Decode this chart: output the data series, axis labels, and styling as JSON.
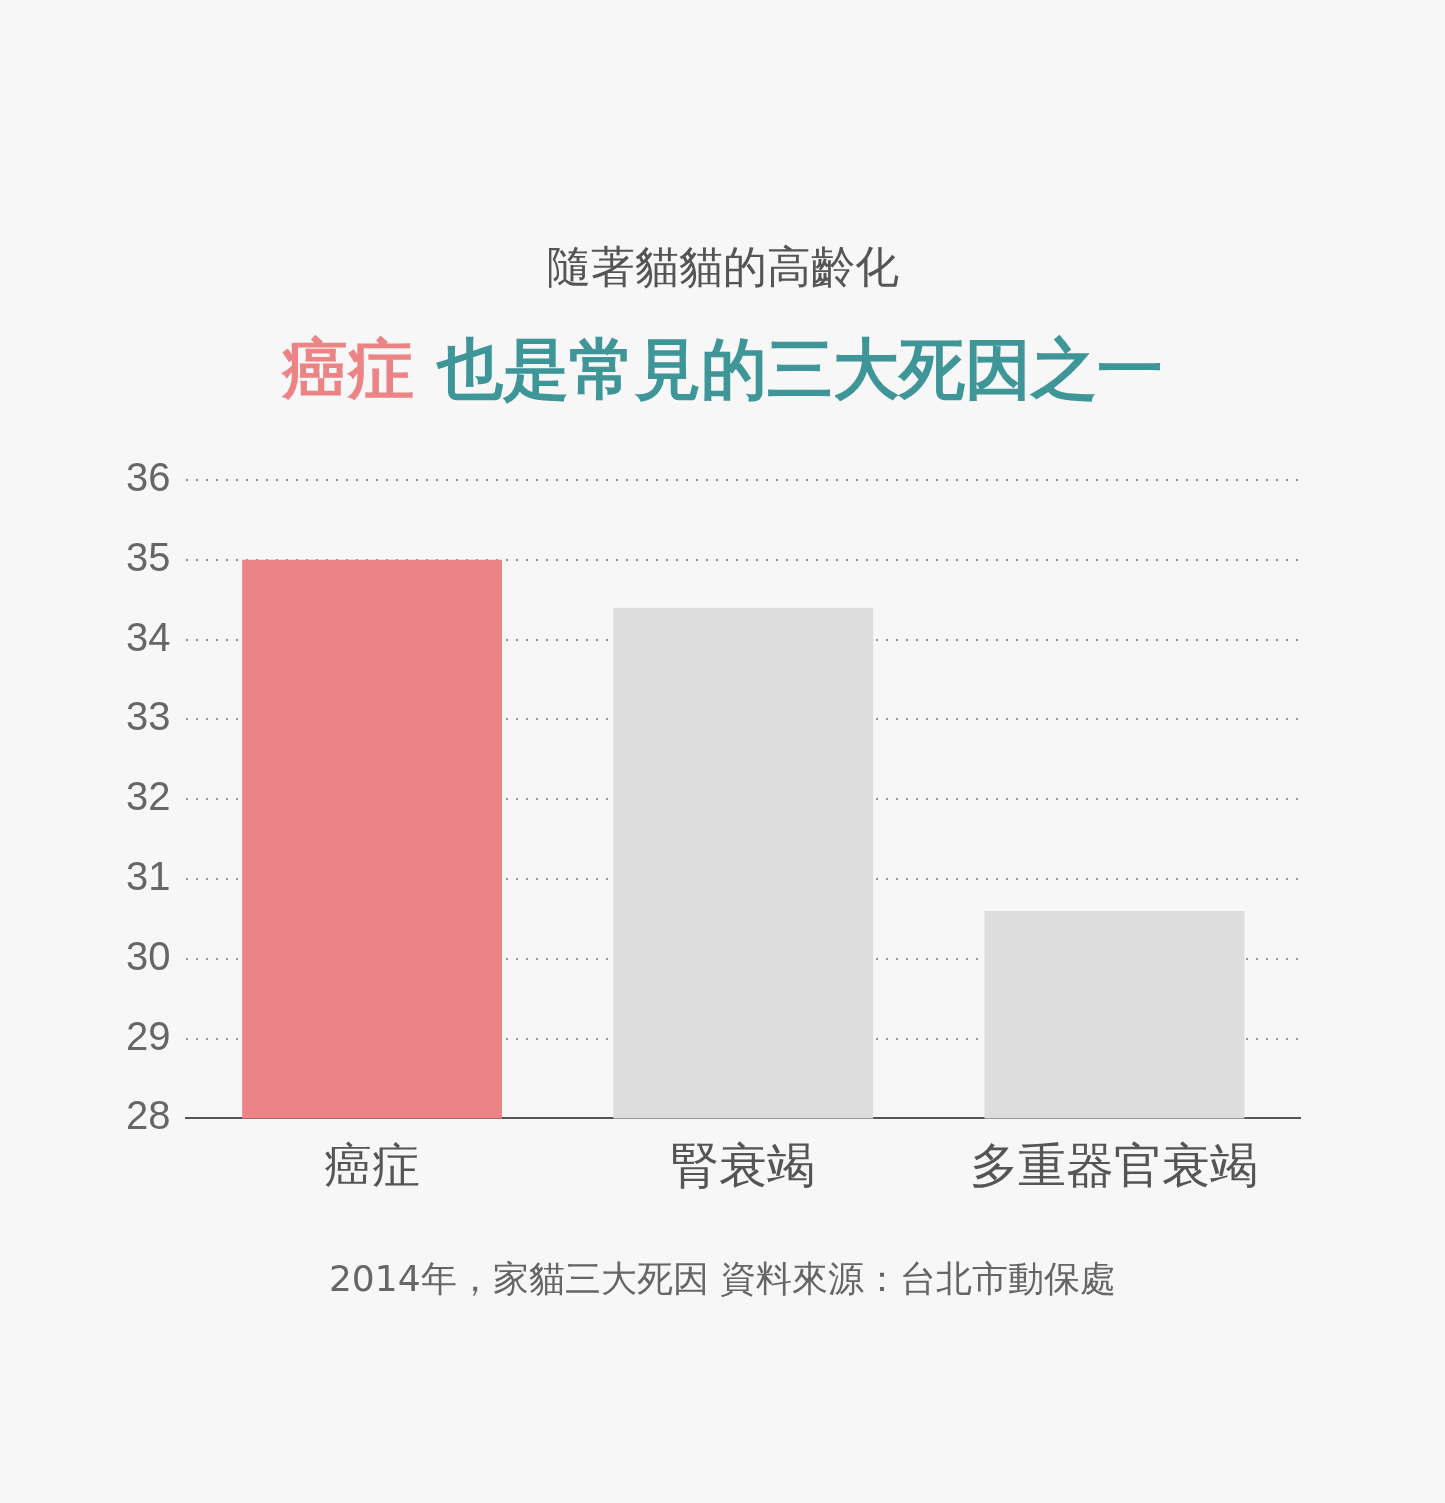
{
  "chart_data": {
    "type": "bar",
    "subtitle": "隨著貓貓的高齡化",
    "title": "癌症 也是常見的三大死因之一",
    "categories": [
      "癌症",
      "腎衰竭",
      "多重器官衰竭"
    ],
    "values": [
      35,
      34.4,
      30.6
    ],
    "colors": [
      "#ec8486",
      "#dddddd",
      "#dddddd"
    ],
    "ylim": [
      28,
      36
    ],
    "yticks": [
      28,
      29,
      30,
      31,
      32,
      33,
      34,
      35,
      36
    ],
    "grid": "y",
    "legend": false,
    "annotations": [
      "2014年，家貓三大死因 資料來源：台北市動保處"
    ]
  }
}
